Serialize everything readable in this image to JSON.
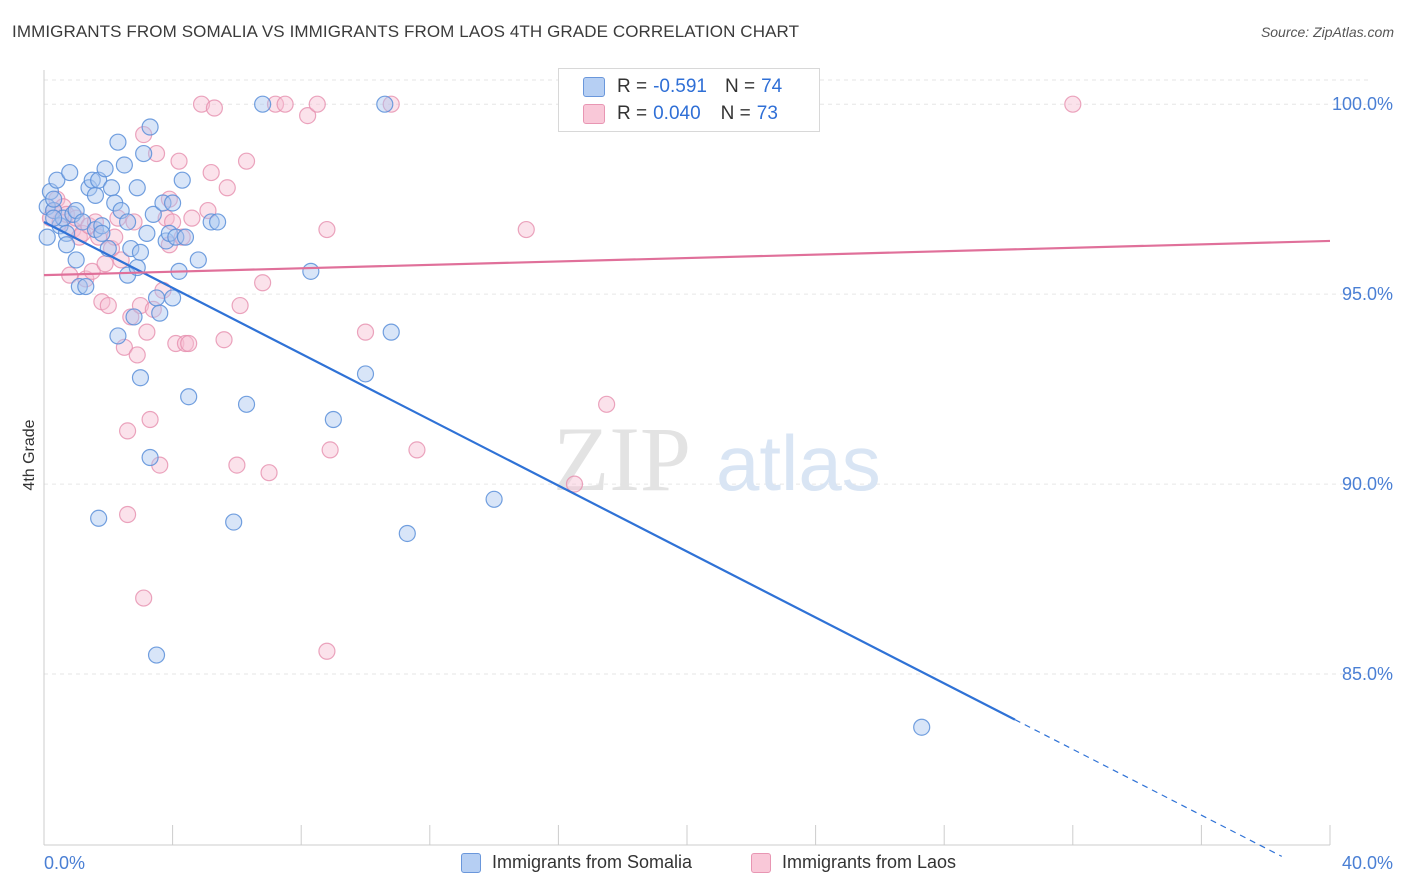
{
  "title": "IMMIGRANTS FROM SOMALIA VS IMMIGRANTS FROM LAOS 4TH GRADE CORRELATION CHART",
  "source": "Source: ZipAtlas.com",
  "watermark": {
    "zip": "ZIP",
    "atlas": "atlas"
  },
  "legend_top": [
    {
      "r_label": "R =",
      "r_value": "-0.591",
      "n_label": "N =",
      "n_value": "74"
    },
    {
      "r_label": "R =",
      "r_value": "0.040",
      "n_label": "N =",
      "n_value": "73"
    }
  ],
  "legend_bottom": [
    "Immigrants from Somalia",
    "Immigrants from Laos"
  ],
  "chart_data": {
    "type": "scatter",
    "title": "IMMIGRANTS FROM SOMALIA VS IMMIGRANTS FROM LAOS 4TH GRADE CORRELATION CHART",
    "xlabel": "",
    "ylabel": "4th Grade",
    "xlim": [
      0,
      40
    ],
    "ylim": [
      80.5,
      100.9
    ],
    "x_tick_labels": [
      "0.0%",
      "40.0%"
    ],
    "y_ticks": [
      100,
      95,
      90,
      85
    ],
    "y_tick_labels": [
      "100.0%",
      "95.0%",
      "90.0%",
      "85.0%"
    ],
    "grid": true,
    "colors": {
      "somalia_fill": "#a9c6f0",
      "somalia_stroke": "#5b8fd9",
      "somalia_line": "#2f72d6",
      "laos_fill": "#f6bfd2",
      "laos_stroke": "#e68fae",
      "laos_line": "#e0709a"
    },
    "series": [
      {
        "name": "Immigrants from Somalia",
        "trend": {
          "x": [
            0,
            30.2
          ],
          "y": [
            96.9,
            83.8
          ],
          "dashed_to": [
            38.5,
            80.2
          ]
        },
        "points": [
          [
            0.1,
            97.3
          ],
          [
            0.1,
            96.5
          ],
          [
            0.2,
            97.7
          ],
          [
            0.3,
            97.2
          ],
          [
            0.3,
            97.5
          ],
          [
            0.4,
            98.0
          ],
          [
            0.5,
            96.8
          ],
          [
            0.6,
            97.0
          ],
          [
            0.7,
            96.6
          ],
          [
            0.7,
            96.3
          ],
          [
            0.8,
            98.2
          ],
          [
            0.9,
            97.1
          ],
          [
            1.0,
            97.2
          ],
          [
            1.0,
            95.9
          ],
          [
            1.1,
            95.2
          ],
          [
            1.2,
            96.9
          ],
          [
            1.3,
            95.2
          ],
          [
            1.4,
            97.8
          ],
          [
            1.5,
            98.0
          ],
          [
            1.6,
            97.6
          ],
          [
            1.6,
            96.7
          ],
          [
            1.7,
            98.0
          ],
          [
            1.8,
            96.8
          ],
          [
            1.8,
            96.6
          ],
          [
            1.9,
            98.3
          ],
          [
            2.0,
            96.2
          ],
          [
            2.1,
            97.8
          ],
          [
            2.2,
            97.4
          ],
          [
            2.3,
            99.0
          ],
          [
            2.3,
            93.9
          ],
          [
            2.4,
            97.2
          ],
          [
            2.5,
            98.4
          ],
          [
            2.6,
            96.9
          ],
          [
            2.7,
            96.2
          ],
          [
            2.6,
            95.5
          ],
          [
            2.8,
            94.4
          ],
          [
            2.9,
            97.8
          ],
          [
            2.9,
            95.7
          ],
          [
            3.0,
            96.1
          ],
          [
            3.1,
            98.7
          ],
          [
            3.2,
            96.6
          ],
          [
            3.3,
            90.7
          ],
          [
            3.4,
            97.1
          ],
          [
            3.5,
            94.9
          ],
          [
            3.6,
            94.5
          ],
          [
            3.7,
            97.4
          ],
          [
            3.8,
            96.4
          ],
          [
            3.9,
            96.6
          ],
          [
            4.0,
            94.9
          ],
          [
            4.1,
            96.5
          ],
          [
            4.2,
            95.6
          ],
          [
            4.3,
            98.0
          ],
          [
            4.4,
            96.5
          ],
          [
            4.5,
            92.3
          ],
          [
            4.8,
            95.9
          ],
          [
            4.0,
            97.4
          ],
          [
            5.2,
            96.9
          ],
          [
            5.4,
            96.9
          ],
          [
            6.3,
            92.1
          ],
          [
            6.8,
            100.0
          ],
          [
            8.3,
            95.6
          ],
          [
            9.0,
            91.7
          ],
          [
            10.0,
            92.9
          ],
          [
            10.8,
            94.0
          ],
          [
            10.6,
            100.0
          ],
          [
            11.3,
            88.7
          ],
          [
            3.0,
            92.8
          ],
          [
            3.5,
            85.5
          ],
          [
            1.7,
            89.1
          ],
          [
            5.9,
            89.0
          ],
          [
            14.0,
            89.6
          ],
          [
            27.3,
            83.6
          ],
          [
            3.3,
            99.4
          ],
          [
            0.3,
            97.0
          ]
        ]
      },
      {
        "name": "Immigrants from Laos",
        "trend": {
          "x": [
            0,
            40
          ],
          "y": [
            95.5,
            96.4
          ]
        },
        "points": [
          [
            0.2,
            97.0
          ],
          [
            0.3,
            97.2
          ],
          [
            0.4,
            97.5
          ],
          [
            0.5,
            96.9
          ],
          [
            0.6,
            97.3
          ],
          [
            0.7,
            97.1
          ],
          [
            0.8,
            95.5
          ],
          [
            0.9,
            96.7
          ],
          [
            1.0,
            97.0
          ],
          [
            1.1,
            96.5
          ],
          [
            1.2,
            96.6
          ],
          [
            1.3,
            95.4
          ],
          [
            1.4,
            96.8
          ],
          [
            1.5,
            95.6
          ],
          [
            1.6,
            96.9
          ],
          [
            1.7,
            96.5
          ],
          [
            1.8,
            94.8
          ],
          [
            1.9,
            95.8
          ],
          [
            2.0,
            94.7
          ],
          [
            2.1,
            96.2
          ],
          [
            2.2,
            96.5
          ],
          [
            2.3,
            97.0
          ],
          [
            2.4,
            95.9
          ],
          [
            2.5,
            93.6
          ],
          [
            2.6,
            91.4
          ],
          [
            2.7,
            94.4
          ],
          [
            2.8,
            96.9
          ],
          [
            2.9,
            93.4
          ],
          [
            3.0,
            94.7
          ],
          [
            3.1,
            99.2
          ],
          [
            3.2,
            94.0
          ],
          [
            3.3,
            91.7
          ],
          [
            3.4,
            94.6
          ],
          [
            3.5,
            98.7
          ],
          [
            3.6,
            90.5
          ],
          [
            3.7,
            95.1
          ],
          [
            3.8,
            97.0
          ],
          [
            3.9,
            96.3
          ],
          [
            4.0,
            96.9
          ],
          [
            4.1,
            93.7
          ],
          [
            4.2,
            98.5
          ],
          [
            4.3,
            96.5
          ],
          [
            4.4,
            93.7
          ],
          [
            4.5,
            93.7
          ],
          [
            4.6,
            97.0
          ],
          [
            4.9,
            100.0
          ],
          [
            5.1,
            97.2
          ],
          [
            5.2,
            98.2
          ],
          [
            5.3,
            99.9
          ],
          [
            5.6,
            93.8
          ],
          [
            5.7,
            97.8
          ],
          [
            6.0,
            90.5
          ],
          [
            6.1,
            94.7
          ],
          [
            6.3,
            98.5
          ],
          [
            6.8,
            95.3
          ],
          [
            7.0,
            90.3
          ],
          [
            7.2,
            100.0
          ],
          [
            7.5,
            100.0
          ],
          [
            8.2,
            99.7
          ],
          [
            8.5,
            100.0
          ],
          [
            8.8,
            96.7
          ],
          [
            8.9,
            90.9
          ],
          [
            10.0,
            94.0
          ],
          [
            10.8,
            100.0
          ],
          [
            11.6,
            90.9
          ],
          [
            15.0,
            96.7
          ],
          [
            16.5,
            90.0
          ],
          [
            17.5,
            92.1
          ],
          [
            3.1,
            87.0
          ],
          [
            8.8,
            85.6
          ],
          [
            2.6,
            89.2
          ],
          [
            3.9,
            97.5
          ],
          [
            32.0,
            100.0
          ]
        ]
      }
    ]
  }
}
